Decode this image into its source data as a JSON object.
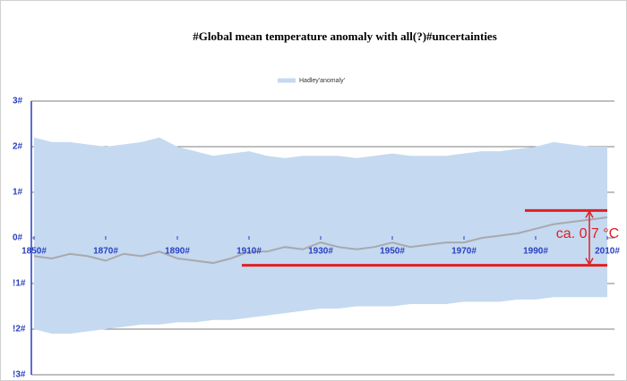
{
  "chart_data": {
    "type": "band-line",
    "title": "#Global mean temperature anomaly with all(?)#uncertainties",
    "x": [
      1850,
      1855,
      1860,
      1865,
      1870,
      1875,
      1880,
      1885,
      1890,
      1895,
      1900,
      1905,
      1910,
      1915,
      1920,
      1925,
      1930,
      1935,
      1940,
      1945,
      1950,
      1955,
      1960,
      1965,
      1970,
      1975,
      1980,
      1985,
      1990,
      1995,
      2000,
      2005,
      2010
    ],
    "series": [
      {
        "name": "Hadley'anomaly'",
        "color": "#a7a9ac",
        "band_color": "#c5d9f1",
        "values": [
          -0.4,
          -0.45,
          -0.35,
          -0.4,
          -0.5,
          -0.35,
          -0.4,
          -0.3,
          -0.45,
          -0.5,
          -0.55,
          -0.45,
          -0.3,
          -0.3,
          -0.2,
          -0.25,
          -0.1,
          -0.2,
          -0.25,
          -0.2,
          -0.1,
          -0.2,
          -0.15,
          -0.1,
          -0.1,
          0.0,
          0.05,
          0.1,
          0.2,
          0.3,
          0.35,
          0.4,
          0.45
        ],
        "upper": [
          2.2,
          2.1,
          2.1,
          2.05,
          2.0,
          2.05,
          2.1,
          2.2,
          2.0,
          1.9,
          1.8,
          1.85,
          1.9,
          1.8,
          1.75,
          1.8,
          1.8,
          1.8,
          1.75,
          1.8,
          1.85,
          1.8,
          1.8,
          1.8,
          1.85,
          1.9,
          1.9,
          1.95,
          2.0,
          2.1,
          2.05,
          2.0,
          2.0
        ],
        "lower": [
          -2.0,
          -2.1,
          -2.1,
          -2.05,
          -2.0,
          -1.95,
          -1.9,
          -1.9,
          -1.85,
          -1.85,
          -1.8,
          -1.8,
          -1.75,
          -1.7,
          -1.65,
          -1.6,
          -1.55,
          -1.55,
          -1.5,
          -1.5,
          -1.5,
          -1.45,
          -1.45,
          -1.45,
          -1.4,
          -1.4,
          -1.4,
          -1.35,
          -1.35,
          -1.3,
          -1.3,
          -1.3,
          -1.3
        ]
      }
    ],
    "xlim": [
      1850,
      2012
    ],
    "xticks": [
      {
        "value": 1850,
        "label": "1850#"
      },
      {
        "value": 1870,
        "label": "1870#"
      },
      {
        "value": 1890,
        "label": "1890#"
      },
      {
        "value": 1910,
        "label": "1910#"
      },
      {
        "value": 1930,
        "label": "1930#"
      },
      {
        "value": 1950,
        "label": "1950#"
      },
      {
        "value": 1970,
        "label": "1970#"
      },
      {
        "value": 1990,
        "label": "1990#"
      },
      {
        "value": 2010,
        "label": "2010#"
      }
    ],
    "ylim": [
      -3,
      3
    ],
    "yticks": [
      {
        "value": 3,
        "label": "3#"
      },
      {
        "value": 2,
        "label": "2#"
      },
      {
        "value": 1,
        "label": "1#"
      },
      {
        "value": 0,
        "label": "0#"
      },
      {
        "value": -1,
        "label": "!1#"
      },
      {
        "value": -2,
        "label": "!2#"
      },
      {
        "value": -3,
        "label": "!3#"
      }
    ],
    "grid": true,
    "legend": "top",
    "annotation": {
      "text": "ca. 0,7 °C",
      "color": "#e02020",
      "upper": 0.6,
      "lower": -0.6,
      "upper_from": 1987,
      "lower_from": 1908,
      "to": 2010,
      "arrow_x": 2005
    }
  }
}
